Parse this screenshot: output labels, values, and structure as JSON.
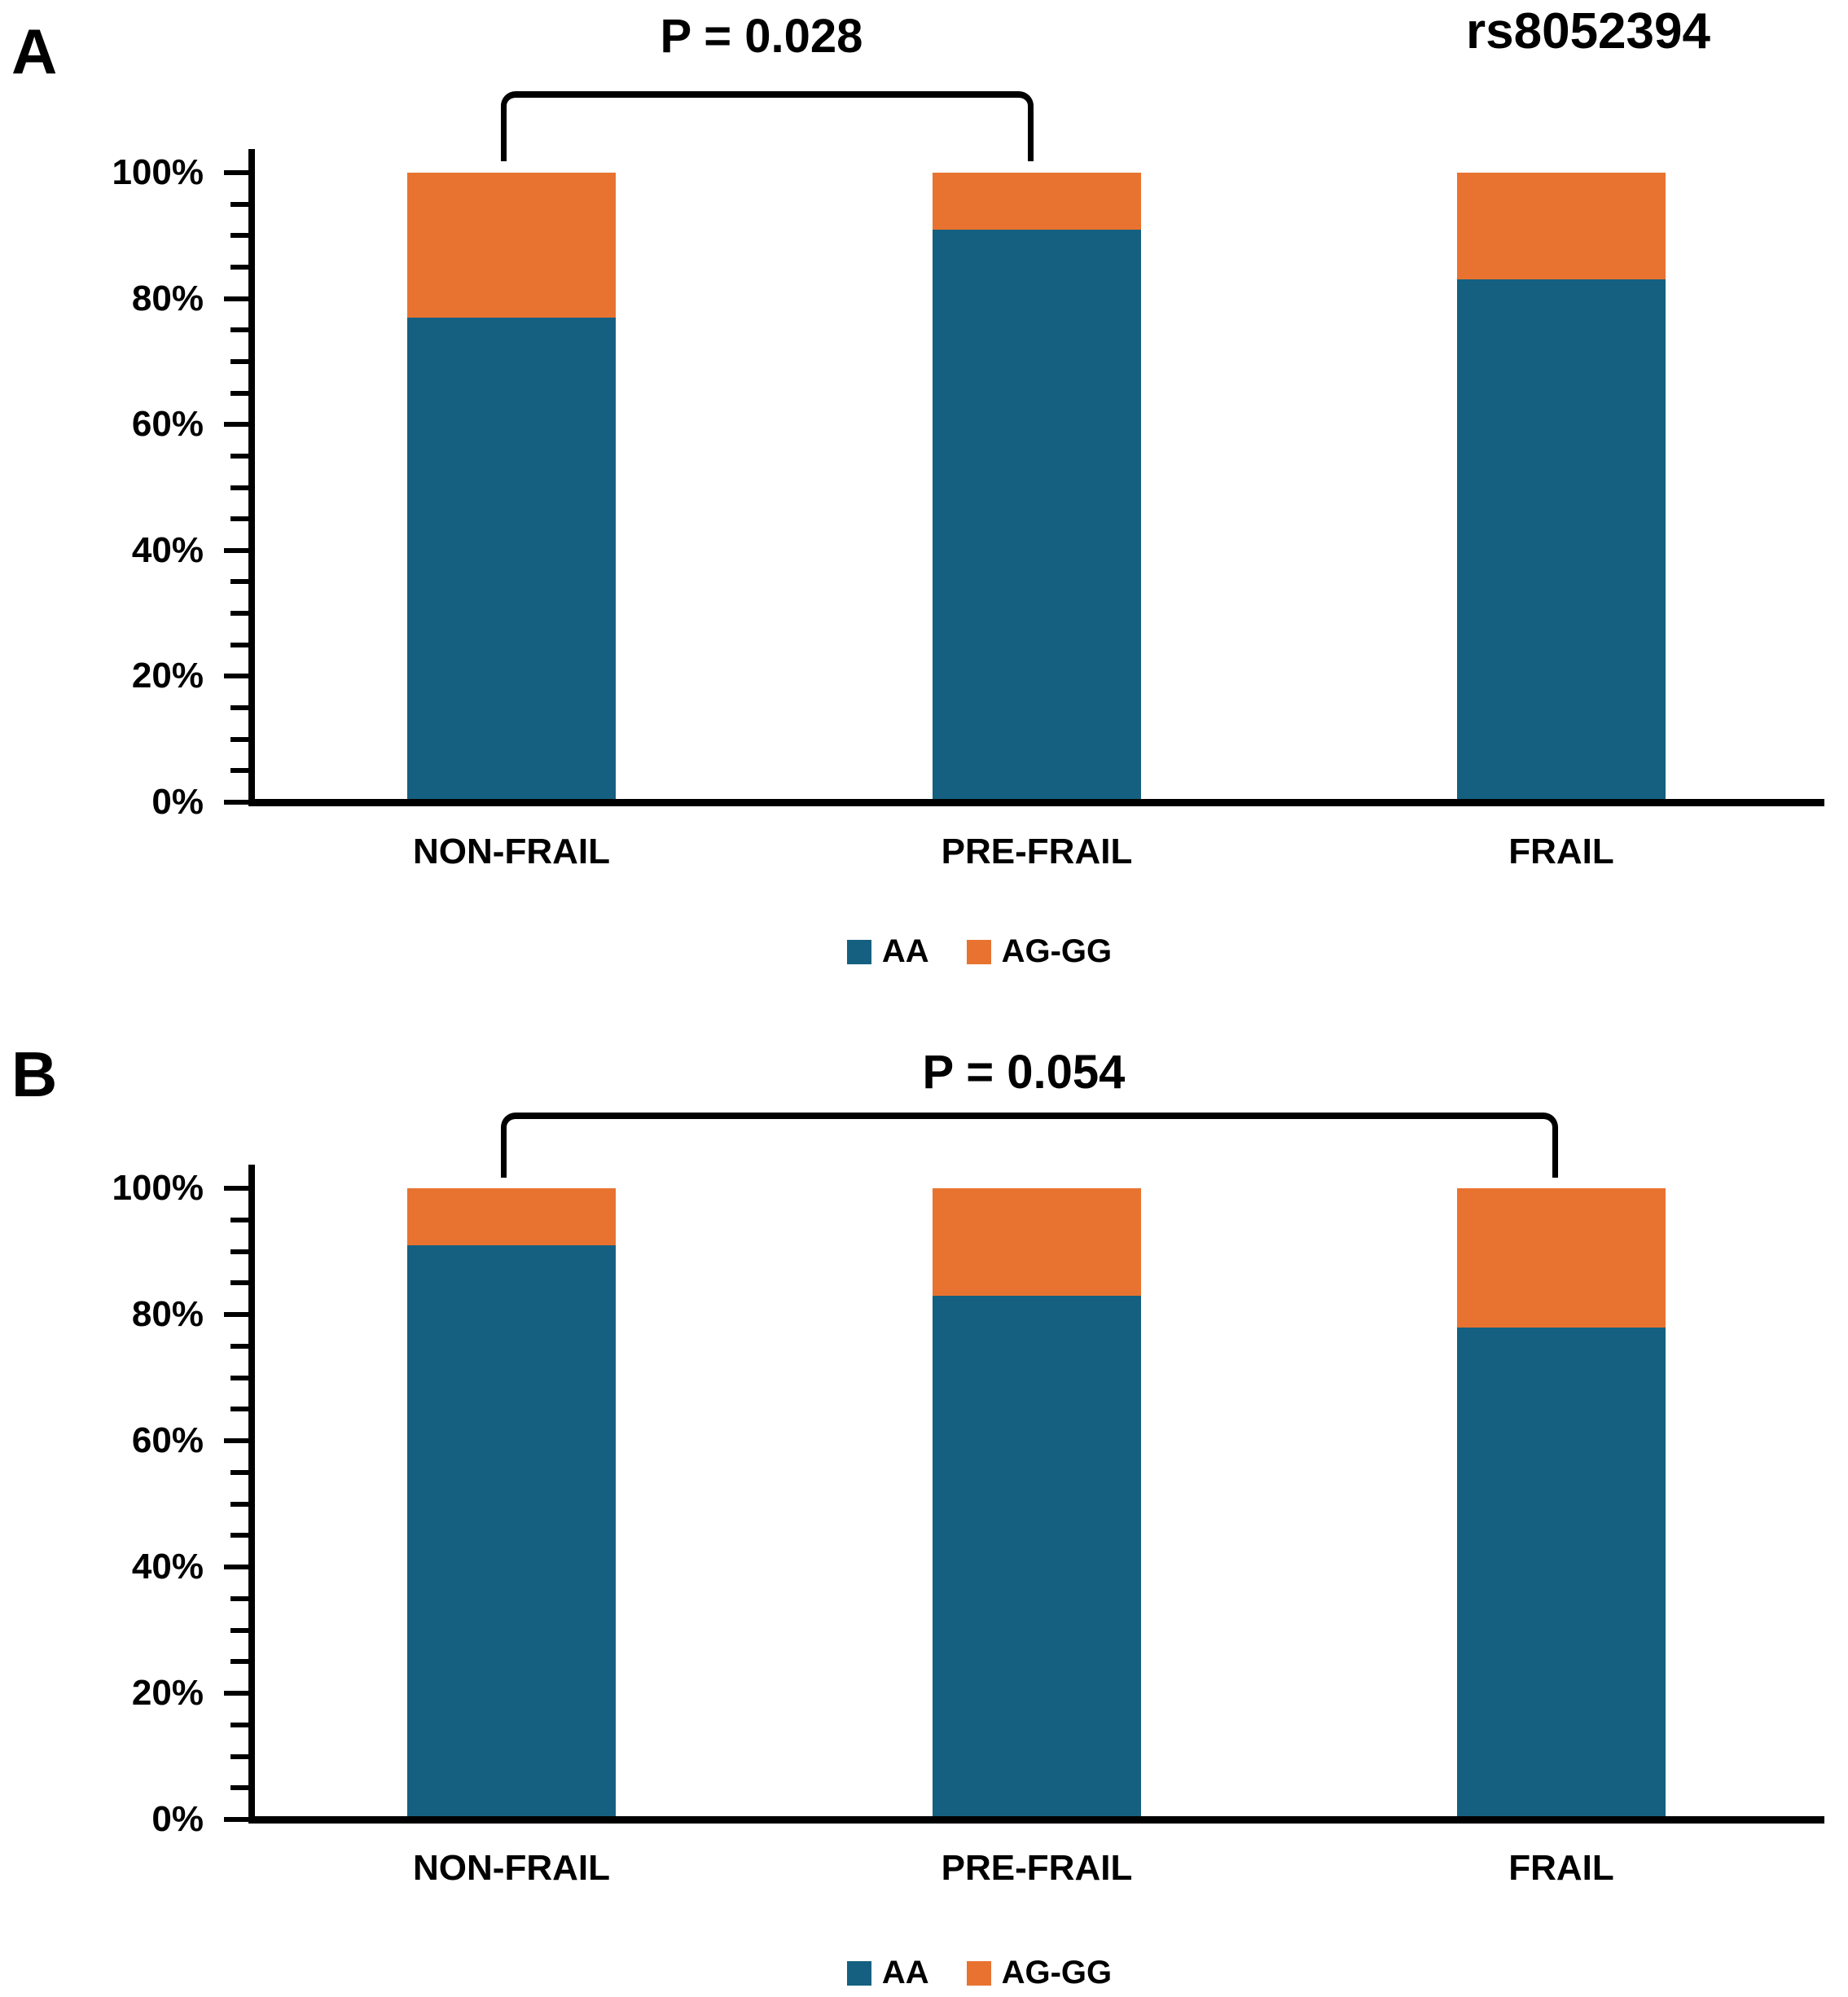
{
  "panels": [
    {
      "letter": "A"
    },
    {
      "letter": "B"
    }
  ],
  "colors": {
    "aa_blue": "#156080",
    "agg_orange": "#E87330",
    "axis_black": "#000000",
    "background": "#FFFFFF"
  },
  "chart_data": [
    {
      "type": "bar",
      "stacked": true,
      "panel": "A",
      "title": "rs8052394",
      "categories": [
        "NON-FRAIL",
        "PRE-FRAIL",
        "FRAIL"
      ],
      "series": [
        {
          "name": "AA",
          "color": "#156080",
          "values": [
            77,
            91,
            83
          ]
        },
        {
          "name": "AG-GG",
          "color": "#E87330",
          "values": [
            23,
            9,
            17
          ]
        }
      ],
      "ylim": [
        0,
        100
      ],
      "ytick_step": 20,
      "ytick_minor_step": 5,
      "ytick_suffix": "%",
      "yticks": [
        "0%",
        "20%",
        "40%",
        "60%",
        "80%",
        "100%"
      ],
      "grid": false,
      "legend_position": "bottom",
      "comparison": {
        "from": "NON-FRAIL",
        "to": "PRE-FRAIL",
        "label": "P = 0.028"
      }
    },
    {
      "type": "bar",
      "stacked": true,
      "panel": "B",
      "title": "",
      "categories": [
        "NON-FRAIL",
        "PRE-FRAIL",
        "FRAIL"
      ],
      "series": [
        {
          "name": "AA",
          "color": "#156080",
          "values": [
            91,
            83,
            78
          ]
        },
        {
          "name": "AG-GG",
          "color": "#E87330",
          "values": [
            9,
            17,
            22
          ]
        }
      ],
      "ylim": [
        0,
        100
      ],
      "ytick_step": 20,
      "ytick_minor_step": 5,
      "ytick_suffix": "%",
      "yticks": [
        "0%",
        "20%",
        "40%",
        "60%",
        "80%",
        "100%"
      ],
      "grid": false,
      "legend_position": "bottom",
      "comparison": {
        "from": "NON-FRAIL",
        "to": "FRAIL",
        "label": "P = 0.054"
      }
    }
  ]
}
